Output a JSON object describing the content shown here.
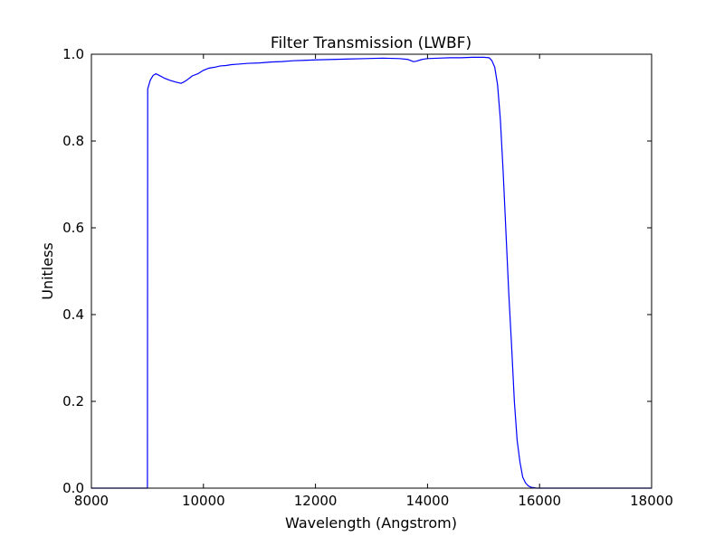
{
  "chart_data": {
    "type": "line",
    "title": "Filter Transmission (LWBF)",
    "xlabel": "Wavelength (Angstrom)",
    "ylabel": "Unitless",
    "xlim": [
      8000,
      18000
    ],
    "ylim": [
      0.0,
      1.0
    ],
    "xticks": [
      8000,
      10000,
      12000,
      14000,
      16000,
      18000
    ],
    "xtick_labels": [
      "8000",
      "10000",
      "12000",
      "14000",
      "16000",
      "18000"
    ],
    "yticks": [
      0.0,
      0.2,
      0.4,
      0.6,
      0.8,
      1.0
    ],
    "ytick_labels": [
      "0.0",
      "0.2",
      "0.4",
      "0.6",
      "0.8",
      "1.0"
    ],
    "grid": false,
    "series": [
      {
        "color": "#0000ff",
        "x": [
          8000,
          8990,
          8995,
          9000,
          9005,
          9050,
          9100,
          9150,
          9200,
          9300,
          9400,
          9500,
          9600,
          9650,
          9700,
          9800,
          9900,
          10000,
          10100,
          10200,
          10300,
          10400,
          10500,
          10600,
          10800,
          11000,
          11200,
          11400,
          11600,
          11800,
          12000,
          12300,
          12600,
          12900,
          13200,
          13500,
          13650,
          13750,
          13800,
          13900,
          14000,
          14200,
          14400,
          14600,
          14800,
          15000,
          15100,
          15150,
          15200,
          15250,
          15300,
          15350,
          15400,
          15450,
          15500,
          15550,
          15600,
          15650,
          15700,
          15750,
          15800,
          15850,
          15900,
          15950,
          16000,
          16100,
          18000
        ],
        "y": [
          0.0,
          0.0,
          0.0,
          0.0,
          0.92,
          0.94,
          0.951,
          0.955,
          0.952,
          0.945,
          0.94,
          0.936,
          0.933,
          0.936,
          0.94,
          0.95,
          0.955,
          0.963,
          0.968,
          0.97,
          0.973,
          0.974,
          0.976,
          0.977,
          0.979,
          0.98,
          0.982,
          0.983,
          0.985,
          0.986,
          0.987,
          0.988,
          0.989,
          0.99,
          0.991,
          0.99,
          0.988,
          0.983,
          0.984,
          0.988,
          0.99,
          0.991,
          0.992,
          0.992,
          0.993,
          0.993,
          0.992,
          0.985,
          0.97,
          0.93,
          0.85,
          0.73,
          0.59,
          0.45,
          0.33,
          0.2,
          0.11,
          0.06,
          0.025,
          0.012,
          0.005,
          0.002,
          0.001,
          0.0,
          0.0,
          0.0,
          0.0
        ]
      }
    ]
  }
}
